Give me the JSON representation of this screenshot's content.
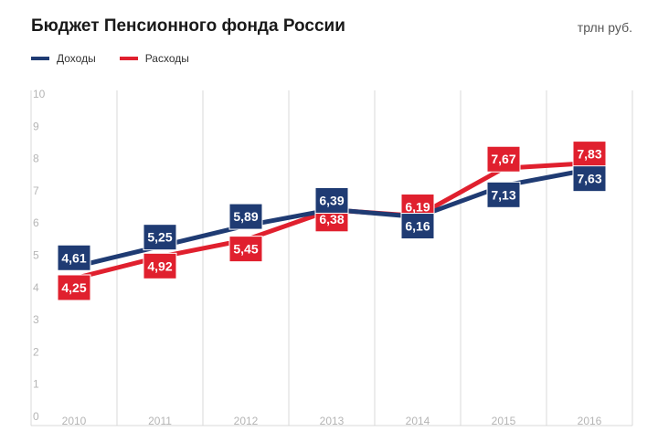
{
  "title": "Бюджет Пенсионного фонда России",
  "unit": "трлн руб.",
  "colors": {
    "income": "#1f3b73",
    "expense": "#e0202e",
    "grid": "#d9d9d9",
    "tick": "#b5b5b5"
  },
  "chart_data": {
    "type": "line",
    "title": "Бюджет Пенсионного фонда России",
    "unit": "трлн руб.",
    "x": [
      "2010",
      "2011",
      "2012",
      "2013",
      "2014",
      "2015",
      "2016"
    ],
    "ylim": [
      0,
      10
    ],
    "yticks": [
      "0",
      "1",
      "2",
      "3",
      "4",
      "5",
      "6",
      "7",
      "8",
      "9",
      "10"
    ],
    "grid": true,
    "legend_position": "top-left",
    "series": [
      {
        "name": "Доходы",
        "color": "#1f3b73",
        "values": [
          4.61,
          5.25,
          5.89,
          6.39,
          6.16,
          7.13,
          7.63
        ],
        "labels": [
          "4,61",
          "5,25",
          "5,89",
          "6,39",
          "6,16",
          "7,13",
          "7,63"
        ]
      },
      {
        "name": "Расходы",
        "color": "#e0202e",
        "values": [
          4.25,
          4.92,
          5.45,
          6.38,
          6.19,
          7.67,
          7.83
        ],
        "labels": [
          "4,25",
          "4,92",
          "5,45",
          "6,38",
          "6,19",
          "7,67",
          "7,83"
        ]
      }
    ]
  }
}
